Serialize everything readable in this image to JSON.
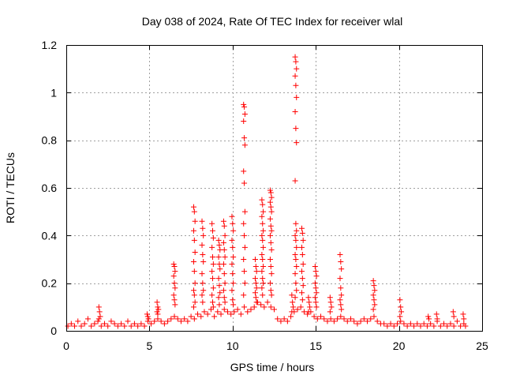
{
  "chart_data": {
    "type": "scatter",
    "title": "Day 038 of 2024, Rate Of TEC Index for receiver wlal",
    "xlabel": "GPS time / hours",
    "ylabel": "ROTI / TECUs",
    "xlim": [
      0,
      25
    ],
    "ylim": [
      0,
      1.2
    ],
    "xticks": [
      0,
      5,
      10,
      15,
      20,
      25
    ],
    "yticks": [
      0,
      0.2,
      0.4,
      0.6,
      0.8,
      1.0,
      1.2
    ],
    "xtick_labels": [
      "0",
      "5",
      "10",
      "15",
      "20",
      "25"
    ],
    "ytick_labels": [
      "0",
      "0.2",
      "0.4",
      "0.6",
      "0.8",
      "1",
      "1.2"
    ],
    "grid": true,
    "marker": "+",
    "color": "#ff0000",
    "series": [
      {
        "name": "ROTI",
        "baseline_points": [
          [
            0.1,
            0.02
          ],
          [
            0.3,
            0.03
          ],
          [
            0.5,
            0.02
          ],
          [
            0.7,
            0.04
          ],
          [
            0.9,
            0.02
          ],
          [
            1.1,
            0.03
          ],
          [
            1.3,
            0.05
          ],
          [
            1.5,
            0.02
          ],
          [
            1.7,
            0.03
          ],
          [
            1.9,
            0.04
          ],
          [
            2.1,
            0.02
          ],
          [
            2.3,
            0.03
          ],
          [
            2.5,
            0.02
          ],
          [
            2.7,
            0.04
          ],
          [
            2.9,
            0.03
          ],
          [
            3.1,
            0.02
          ],
          [
            3.3,
            0.03
          ],
          [
            3.5,
            0.02
          ],
          [
            3.7,
            0.04
          ],
          [
            3.9,
            0.02
          ],
          [
            4.1,
            0.03
          ],
          [
            4.3,
            0.02
          ],
          [
            4.5,
            0.03
          ],
          [
            4.7,
            0.02
          ],
          [
            4.9,
            0.04
          ],
          [
            5.1,
            0.03
          ],
          [
            5.3,
            0.04
          ],
          [
            5.5,
            0.05
          ],
          [
            5.7,
            0.04
          ],
          [
            5.9,
            0.03
          ],
          [
            6.1,
            0.04
          ],
          [
            6.3,
            0.05
          ],
          [
            6.5,
            0.06
          ],
          [
            6.7,
            0.05
          ],
          [
            6.9,
            0.04
          ],
          [
            7.1,
            0.05
          ],
          [
            7.3,
            0.04
          ],
          [
            7.5,
            0.06
          ],
          [
            7.7,
            0.05
          ],
          [
            7.9,
            0.07
          ],
          [
            8.1,
            0.06
          ],
          [
            8.3,
            0.08
          ],
          [
            8.5,
            0.07
          ],
          [
            8.7,
            0.09
          ],
          [
            8.9,
            0.06
          ],
          [
            9.1,
            0.08
          ],
          [
            9.3,
            0.07
          ],
          [
            9.5,
            0.09
          ],
          [
            9.7,
            0.08
          ],
          [
            9.9,
            0.07
          ],
          [
            10.1,
            0.08
          ],
          [
            10.3,
            0.09
          ],
          [
            10.5,
            0.07
          ],
          [
            10.7,
            0.1
          ],
          [
            10.9,
            0.08
          ],
          [
            11.1,
            0.09
          ],
          [
            11.3,
            0.1
          ],
          [
            11.5,
            0.12
          ],
          [
            11.7,
            0.11
          ],
          [
            11.9,
            0.1
          ],
          [
            12.1,
            0.12
          ],
          [
            12.3,
            0.1
          ],
          [
            12.5,
            0.09
          ],
          [
            12.7,
            0.05
          ],
          [
            12.9,
            0.04
          ],
          [
            13.1,
            0.05
          ],
          [
            13.3,
            0.04
          ],
          [
            13.5,
            0.06
          ],
          [
            13.7,
            0.08
          ],
          [
            13.9,
            0.09
          ],
          [
            14.1,
            0.1
          ],
          [
            14.3,
            0.08
          ],
          [
            14.5,
            0.07
          ],
          [
            14.7,
            0.08
          ],
          [
            14.9,
            0.06
          ],
          [
            15.1,
            0.05
          ],
          [
            15.3,
            0.06
          ],
          [
            15.5,
            0.05
          ],
          [
            15.7,
            0.04
          ],
          [
            15.9,
            0.05
          ],
          [
            16.1,
            0.04
          ],
          [
            16.3,
            0.05
          ],
          [
            16.5,
            0.06
          ],
          [
            16.7,
            0.05
          ],
          [
            16.9,
            0.04
          ],
          [
            17.1,
            0.05
          ],
          [
            17.3,
            0.04
          ],
          [
            17.5,
            0.03
          ],
          [
            17.7,
            0.04
          ],
          [
            17.9,
            0.05
          ],
          [
            18.1,
            0.04
          ],
          [
            18.3,
            0.05
          ],
          [
            18.5,
            0.06
          ],
          [
            18.7,
            0.04
          ],
          [
            18.9,
            0.03
          ],
          [
            19.1,
            0.03
          ],
          [
            19.3,
            0.02
          ],
          [
            19.5,
            0.03
          ],
          [
            19.7,
            0.02
          ],
          [
            19.9,
            0.03
          ],
          [
            20.1,
            0.04
          ],
          [
            20.3,
            0.03
          ],
          [
            20.5,
            0.02
          ],
          [
            20.7,
            0.03
          ],
          [
            20.9,
            0.02
          ],
          [
            21.1,
            0.03
          ],
          [
            21.3,
            0.02
          ],
          [
            21.5,
            0.03
          ],
          [
            21.7,
            0.02
          ],
          [
            21.9,
            0.03
          ],
          [
            22.1,
            0.02
          ],
          [
            22.3,
            0.04
          ],
          [
            22.5,
            0.02
          ],
          [
            22.7,
            0.03
          ],
          [
            22.9,
            0.02
          ],
          [
            23.1,
            0.03
          ],
          [
            23.3,
            0.02
          ],
          [
            23.5,
            0.04
          ],
          [
            23.7,
            0.02
          ],
          [
            23.9,
            0.03
          ],
          [
            24.0,
            0.02
          ]
        ],
        "spikes": [
          {
            "x": 2.0,
            "values": [
              0.1,
              0.08,
              0.06,
              0.05
            ]
          },
          {
            "x": 4.9,
            "values": [
              0.07,
              0.06,
              0.05
            ]
          },
          {
            "x": 5.5,
            "values": [
              0.12,
              0.1,
              0.09,
              0.08,
              0.07
            ]
          },
          {
            "x": 6.5,
            "values": [
              0.28,
              0.27,
              0.25,
              0.23,
              0.2,
              0.18,
              0.15,
              0.13,
              0.11
            ]
          },
          {
            "x": 7.7,
            "values": [
              0.52,
              0.5,
              0.46,
              0.42,
              0.38,
              0.33,
              0.29,
              0.25,
              0.2,
              0.17,
              0.15,
              0.12,
              0.1
            ]
          },
          {
            "x": 8.2,
            "values": [
              0.46,
              0.43,
              0.4,
              0.36,
              0.32,
              0.29,
              0.24,
              0.2,
              0.17,
              0.15,
              0.12
            ]
          },
          {
            "x": 8.8,
            "values": [
              0.45,
              0.42,
              0.39,
              0.35,
              0.31,
              0.28,
              0.25,
              0.22,
              0.18,
              0.15,
              0.12,
              0.1
            ]
          },
          {
            "x": 9.2,
            "values": [
              0.38,
              0.36,
              0.34,
              0.31,
              0.28,
              0.26,
              0.22,
              0.19,
              0.16,
              0.14,
              0.11
            ]
          },
          {
            "x": 9.5,
            "values": [
              0.46,
              0.44,
              0.4,
              0.37,
              0.34,
              0.31,
              0.28,
              0.24,
              0.2,
              0.17,
              0.14,
              0.12
            ]
          },
          {
            "x": 10.0,
            "values": [
              0.48,
              0.45,
              0.42,
              0.38,
              0.35,
              0.31,
              0.28,
              0.24,
              0.2,
              0.17,
              0.13,
              0.11
            ]
          },
          {
            "x": 10.7,
            "values": [
              0.95,
              0.94,
              0.91,
              0.88,
              0.81,
              0.78,
              0.67,
              0.62,
              0.5,
              0.45,
              0.4,
              0.35,
              0.3,
              0.25,
              0.2,
              0.15
            ]
          },
          {
            "x": 11.4,
            "values": [
              0.3,
              0.27,
              0.25,
              0.22,
              0.2,
              0.18,
              0.16,
              0.14,
              0.12
            ]
          },
          {
            "x": 11.8,
            "values": [
              0.55,
              0.53,
              0.5,
              0.48,
              0.45,
              0.42,
              0.4,
              0.38,
              0.35,
              0.32,
              0.3,
              0.27,
              0.25,
              0.22,
              0.2,
              0.18,
              0.15
            ]
          },
          {
            "x": 12.3,
            "values": [
              0.59,
              0.58,
              0.56,
              0.54,
              0.52,
              0.5,
              0.47,
              0.44,
              0.42,
              0.4,
              0.37,
              0.34,
              0.3,
              0.27,
              0.24,
              0.2,
              0.17,
              0.15
            ]
          },
          {
            "x": 13.6,
            "values": [
              0.15,
              0.12,
              0.1,
              0.08
            ]
          },
          {
            "x": 13.8,
            "values": [
              1.15,
              1.13,
              1.1,
              1.07,
              1.03,
              0.98,
              0.92,
              0.85,
              0.79,
              0.63,
              0.45,
              0.42,
              0.4,
              0.38,
              0.35,
              0.32,
              0.3,
              0.27,
              0.24,
              0.2,
              0.17,
              0.14
            ]
          },
          {
            "x": 14.2,
            "values": [
              0.43,
              0.41,
              0.38,
              0.35,
              0.32,
              0.28,
              0.25,
              0.22,
              0.19,
              0.16,
              0.13
            ]
          },
          {
            "x": 14.6,
            "values": [
              0.14,
              0.12,
              0.1,
              0.08
            ]
          },
          {
            "x": 15.0,
            "values": [
              0.27,
              0.25,
              0.23,
              0.2,
              0.18,
              0.16,
              0.14,
              0.12,
              0.1
            ]
          },
          {
            "x": 15.9,
            "values": [
              0.14,
              0.12,
              0.1,
              0.08
            ]
          },
          {
            "x": 16.5,
            "values": [
              0.32,
              0.29,
              0.26,
              0.22,
              0.18,
              0.15,
              0.13,
              0.11,
              0.09
            ]
          },
          {
            "x": 18.5,
            "values": [
              0.21,
              0.19,
              0.17,
              0.15,
              0.13,
              0.11,
              0.09
            ]
          },
          {
            "x": 20.1,
            "values": [
              0.13,
              0.1,
              0.08,
              0.06
            ]
          },
          {
            "x": 21.8,
            "values": [
              0.06,
              0.05
            ]
          },
          {
            "x": 22.3,
            "values": [
              0.07,
              0.05
            ]
          },
          {
            "x": 23.3,
            "values": [
              0.08,
              0.06
            ]
          },
          {
            "x": 23.9,
            "values": [
              0.07,
              0.05
            ]
          }
        ]
      }
    ]
  }
}
